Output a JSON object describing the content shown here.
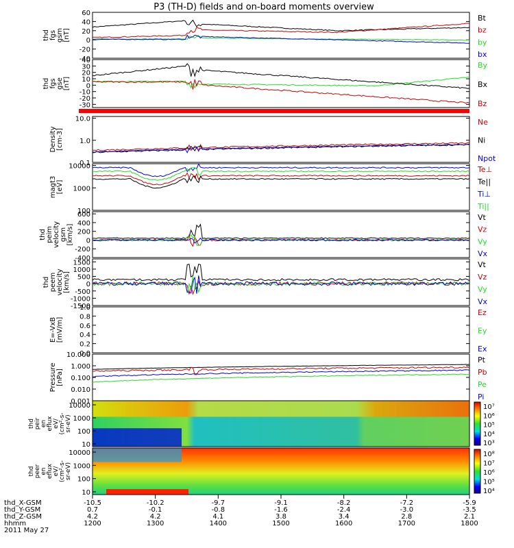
{
  "title": "P3 (TH-D) fields and on-board moments overview",
  "colors": {
    "black": "#000000",
    "red": "#cc0000",
    "green": "#22dd22",
    "blue": "#0000dd",
    "bar_red": "#ff0000"
  },
  "chart_data": {
    "type": "line",
    "x_axis": {
      "rows": [
        {
          "label": "thd_X-GSM",
          "values": [
            "-10.5",
            "-10.2",
            "-9.7",
            "-9.1",
            "-8.2",
            "-7.2",
            "-5.9"
          ]
        },
        {
          "label": "thd_Y-GSM",
          "values": [
            "0.7",
            "-0.1",
            "-0.8",
            "-1.6",
            "-2.4",
            "-3.0",
            "-3.5"
          ]
        },
        {
          "label": "thd_Z-GSM",
          "values": [
            "4.2",
            "4.2",
            "4.1",
            "3.8",
            "3.4",
            "2.8",
            "2.1"
          ]
        },
        {
          "label": "hhmm",
          "values": [
            "1200",
            "1300",
            "1400",
            "1500",
            "1600",
            "1700",
            "1800"
          ]
        }
      ],
      "date": "2011 May 27",
      "xlim": [
        1200,
        1800
      ]
    },
    "panels": [
      {
        "id": "fgs-gsm",
        "ylabel": [
          "thd",
          "fgs",
          "gsm",
          "[nT]"
        ],
        "yticks": [
          "60",
          "40",
          "20",
          "0",
          "-20",
          "-40"
        ],
        "ylim": [
          -40,
          60
        ],
        "series": [
          {
            "name": "Bt",
            "color": "black"
          },
          {
            "name": "bz",
            "color": "red"
          },
          {
            "name": "by",
            "color": "green"
          },
          {
            "name": "bx",
            "color": "blue"
          }
        ]
      },
      {
        "id": "fgs-gse",
        "ylabel": [
          "thd",
          "fgs",
          "gse",
          "[nT]"
        ],
        "yticks": [
          "40",
          "30",
          "20",
          "10",
          "0",
          "-10",
          "-20",
          "-30"
        ],
        "ylim": [
          -35,
          40
        ],
        "series": [
          {
            "name": "By",
            "color": "green"
          },
          {
            "name": "Bx",
            "color": "black"
          },
          {
            "name": "Bz",
            "color": "red"
          }
        ]
      },
      {
        "id": "density",
        "ylabel": [
          "Density",
          "[cm-3]"
        ],
        "yticks": [
          "10.0",
          "1.0",
          "0.1"
        ],
        "ylim": [
          0.1,
          12
        ],
        "log": true,
        "series": [
          {
            "name": "Ne",
            "color": "red"
          },
          {
            "name": "Ni",
            "color": "black"
          },
          {
            "name": "Npot",
            "color": "blue"
          }
        ]
      },
      {
        "id": "temperature",
        "ylabel": [
          "magt3",
          "[eV]"
        ],
        "yticks": [
          "10000",
          "1000",
          "100"
        ],
        "ylim": [
          100,
          12000
        ],
        "log": true,
        "series": [
          {
            "name": "Te⊥",
            "color": "red"
          },
          {
            "name": "Te||",
            "color": "black"
          },
          {
            "name": "Ti⊥",
            "color": "blue"
          },
          {
            "name": "Ti||",
            "color": "green"
          }
        ]
      },
      {
        "id": "peim-velocity",
        "ylabel": [
          "thd",
          "peim",
          "velocity",
          "gsm",
          "[km/s]"
        ],
        "yticks": [
          "600",
          "400",
          "200",
          "0",
          "-200",
          "-400"
        ],
        "ylim": [
          -400,
          650
        ],
        "series": [
          {
            "name": "Vt",
            "color": "black"
          },
          {
            "name": "Vz",
            "color": "red"
          },
          {
            "name": "Vy",
            "color": "green"
          },
          {
            "name": "Vx",
            "color": "blue"
          }
        ]
      },
      {
        "id": "peem-velocity",
        "ylabel": [
          "thd",
          "peem",
          "velocity",
          "[km/s]"
        ],
        "yticks": [
          "1500",
          "1000",
          "500",
          "0",
          "-500",
          "-1000",
          "-1500"
        ],
        "ylim": [
          -1500,
          1700
        ],
        "series": [
          {
            "name": "Vt",
            "color": "black"
          },
          {
            "name": "Vz",
            "color": "red"
          },
          {
            "name": "Vy",
            "color": "green"
          },
          {
            "name": "Vx",
            "color": "blue"
          }
        ]
      },
      {
        "id": "efield",
        "ylabel": [
          "E=-VxB",
          "[mV/m]"
        ],
        "yticks": [
          "1.0",
          "0.8",
          "0.6",
          "0.4",
          "0.2",
          "0.0"
        ],
        "ylim": [
          0,
          1
        ],
        "series": [
          {
            "name": "Ez",
            "color": "red"
          },
          {
            "name": "Ey",
            "color": "green"
          },
          {
            "name": "Ex",
            "color": "blue"
          }
        ]
      },
      {
        "id": "pressure",
        "ylabel": [
          "Pressure",
          "[nPa]"
        ],
        "yticks": [
          "10.000",
          "1.000",
          "0.100",
          "0.010",
          "0.001"
        ],
        "ylim": [
          0.001,
          10
        ],
        "log": true,
        "series": [
          {
            "name": "Pt",
            "color": "black"
          },
          {
            "name": "Pb",
            "color": "red"
          },
          {
            "name": "Pe",
            "color": "green"
          },
          {
            "name": "Pi",
            "color": "blue"
          }
        ]
      }
    ],
    "spectrograms": [
      {
        "id": "peir",
        "ylabel": [
          "thd",
          "peir",
          "en",
          "eflux",
          "eV/",
          "(cm²-s-",
          "sr-eV)"
        ],
        "yticks": [
          "10000",
          "1000",
          "100",
          "10"
        ],
        "colorbar": [
          "10⁷",
          "10⁶",
          "10⁵",
          "10⁴",
          "10³"
        ]
      },
      {
        "id": "peer",
        "ylabel": [
          "thd",
          "peer",
          "en",
          "eflux",
          "eV/",
          "(cm²-s-",
          "sr-eV)"
        ],
        "yticks": [
          "10000",
          "1000",
          "100",
          "10"
        ],
        "colorbar": [
          "10⁸",
          "10⁷",
          "10⁶",
          "10⁵",
          "10⁴"
        ]
      }
    ]
  }
}
